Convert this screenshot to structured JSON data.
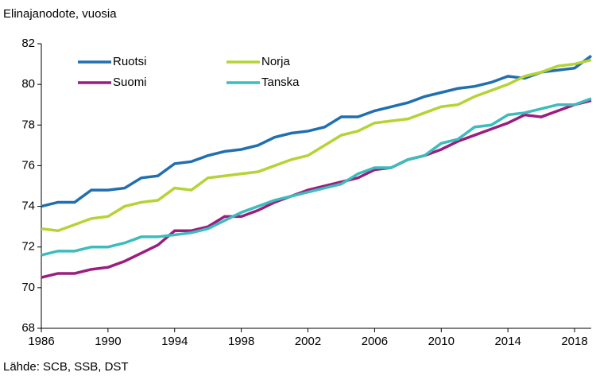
{
  "chart_data": {
    "type": "line",
    "y_label": "Elinajanodote, vuosia",
    "source": "Lähde: SCB, SSB, DST",
    "x": [
      1986,
      1987,
      1988,
      1989,
      1990,
      1991,
      1992,
      1993,
      1994,
      1995,
      1996,
      1997,
      1998,
      1999,
      2000,
      2001,
      2002,
      2003,
      2004,
      2005,
      2006,
      2007,
      2008,
      2009,
      2010,
      2011,
      2012,
      2013,
      2014,
      2015,
      2016,
      2017,
      2018,
      2019
    ],
    "xlim": [
      1986,
      2019
    ],
    "xticks": [
      1986,
      1990,
      1994,
      1998,
      2002,
      2006,
      2010,
      2014,
      2018
    ],
    "ylim": [
      68,
      82
    ],
    "yticks": [
      68,
      70,
      72,
      74,
      76,
      78,
      80,
      82
    ],
    "grid": false,
    "legend": "top-left",
    "series": [
      {
        "name": "Ruotsi",
        "color": "#1f6fb1",
        "values": [
          74.0,
          74.2,
          74.2,
          74.8,
          74.8,
          74.9,
          75.4,
          75.5,
          76.1,
          76.2,
          76.5,
          76.7,
          76.8,
          77.0,
          77.4,
          77.6,
          77.7,
          77.9,
          78.4,
          78.4,
          78.7,
          78.9,
          79.1,
          79.4,
          79.6,
          79.8,
          79.9,
          80.1,
          80.4,
          80.3,
          80.6,
          80.7,
          80.8,
          81.4
        ]
      },
      {
        "name": "Norja",
        "color": "#b5d335",
        "values": [
          72.9,
          72.8,
          73.1,
          73.4,
          73.5,
          74.0,
          74.2,
          74.3,
          74.9,
          74.8,
          75.4,
          75.5,
          75.6,
          75.7,
          76.0,
          76.3,
          76.5,
          77.0,
          77.5,
          77.7,
          78.1,
          78.2,
          78.3,
          78.6,
          78.9,
          79.0,
          79.4,
          79.7,
          80.0,
          80.4,
          80.6,
          80.9,
          81.0,
          81.2
        ]
      },
      {
        "name": "Suomi",
        "color": "#9c1d7f",
        "values": [
          70.5,
          70.7,
          70.7,
          70.9,
          71.0,
          71.3,
          71.7,
          72.1,
          72.8,
          72.8,
          73.0,
          73.5,
          73.5,
          73.8,
          74.2,
          74.5,
          74.8,
          75.0,
          75.2,
          75.4,
          75.8,
          75.9,
          76.3,
          76.5,
          76.8,
          77.2,
          77.5,
          77.8,
          78.1,
          78.5,
          78.4,
          78.7,
          79.0,
          79.2
        ]
      },
      {
        "name": "Tanska",
        "color": "#3cbcbc",
        "values": [
          71.6,
          71.8,
          71.8,
          72.0,
          72.0,
          72.2,
          72.5,
          72.5,
          72.6,
          72.7,
          72.9,
          73.3,
          73.7,
          74.0,
          74.3,
          74.5,
          74.7,
          74.9,
          75.1,
          75.6,
          75.9,
          75.9,
          76.3,
          76.5,
          77.1,
          77.3,
          77.9,
          78.0,
          78.5,
          78.6,
          78.8,
          79.0,
          79.0,
          79.3
        ]
      }
    ]
  }
}
